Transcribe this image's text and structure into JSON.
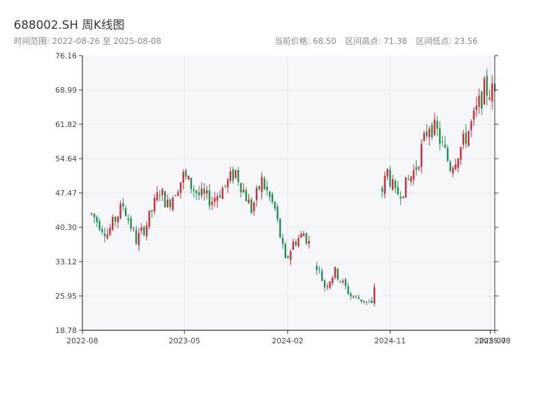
{
  "header": {
    "title": "688002.SH 周K线图",
    "subtitle": "时间范围: 2022-08-26 至 2025-08-08",
    "current_price": "当前价格: 68.50",
    "range_high": "区间高点: 71.38",
    "range_low": "区间低点: 23.56"
  },
  "colors": {
    "up": "#d9262c",
    "down": "#18924a",
    "plot_bg": "#f5f7fa",
    "grid": "#e4e7ec",
    "axis": "#333333"
  },
  "chart_data": {
    "type": "candlestick",
    "title": "688002.SH 周K线图",
    "ylim": [
      18.78,
      76.16
    ],
    "y_ticks": [
      "18.78",
      "25.95",
      "33.12",
      "40.30",
      "47.47",
      "54.64",
      "61.82",
      "68.99",
      "76.16"
    ],
    "x_range": [
      "2022-08-26",
      "2025-08-08"
    ],
    "x_ticks": [
      {
        "date": "2022-08-01",
        "label": "2022-08"
      },
      {
        "date": "2023-05-01",
        "label": "2023-05"
      },
      {
        "date": "2024-02-01",
        "label": "2024-02"
      },
      {
        "date": "2024-11-01",
        "label": "2024-11"
      },
      {
        "date": "2025-07-27",
        "label": "2025-07"
      },
      {
        "date": "2025-08-08",
        "label": "2025-08"
      }
    ],
    "grid": true,
    "anchors": [
      {
        "date": "2022-08-26",
        "close": 43
      },
      {
        "date": "2022-10-07",
        "close": 39
      },
      {
        "date": "2022-11-18",
        "close": 45
      },
      {
        "date": "2022-12-23",
        "close": 37.5
      },
      {
        "date": "2023-01-20",
        "close": 41
      },
      {
        "date": "2023-02-24",
        "close": 48
      },
      {
        "date": "2023-03-17",
        "close": 45
      },
      {
        "date": "2023-04-28",
        "close": 51
      },
      {
        "date": "2023-06-09",
        "close": 47
      },
      {
        "date": "2023-07-14",
        "close": 46
      },
      {
        "date": "2023-08-18",
        "close": 49
      },
      {
        "date": "2023-09-15",
        "close": 52
      },
      {
        "date": "2023-10-27",
        "close": 44
      },
      {
        "date": "2023-11-24",
        "close": 50
      },
      {
        "date": "2023-12-29",
        "close": 44
      },
      {
        "date": "2024-01-26",
        "close": 33
      },
      {
        "date": "2024-02-16",
        "close": 37
      },
      {
        "date": "2024-03-15",
        "close": 39
      },
      {
        "date": "2024-03-29",
        "close": 37
      },
      {
        "date": "2024-05-10",
        "close": 28
      },
      {
        "date": "2024-06-07",
        "close": 31
      },
      {
        "date": "2024-07-19",
        "close": 26
      },
      {
        "date": "2024-08-23",
        "close": 25
      },
      {
        "date": "2024-09-13",
        "close": 24
      },
      {
        "date": "2024-09-27",
        "close": 32
      },
      {
        "date": "2024-10-11",
        "close": 48
      },
      {
        "date": "2024-10-25",
        "close": 52
      },
      {
        "date": "2024-11-15",
        "close": 47
      },
      {
        "date": "2024-12-13",
        "close": 49
      },
      {
        "date": "2025-01-10",
        "close": 53
      },
      {
        "date": "2025-02-14",
        "close": 62
      },
      {
        "date": "2025-03-07",
        "close": 60
      },
      {
        "date": "2025-04-11",
        "close": 53
      },
      {
        "date": "2025-05-16",
        "close": 58
      },
      {
        "date": "2025-06-13",
        "close": 63
      },
      {
        "date": "2025-07-11",
        "close": 69
      },
      {
        "date": "2025-08-08",
        "close": 68.5
      }
    ],
    "gaps": [
      {
        "from": "2024-04-04",
        "to": "2024-04-18"
      },
      {
        "from": "2024-09-23",
        "to": "2024-09-27"
      },
      {
        "from": "2024-10-03",
        "to": "2024-10-07"
      }
    ]
  }
}
